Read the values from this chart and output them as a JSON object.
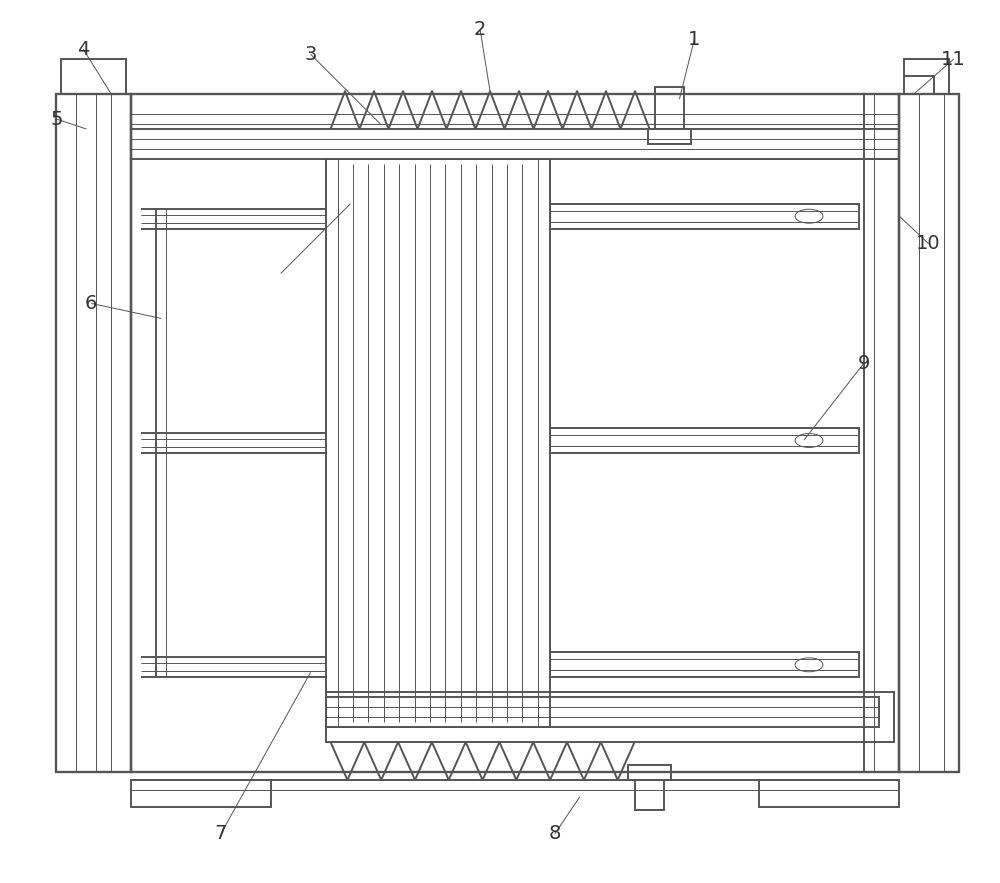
{
  "bg_color": "#ffffff",
  "lc": "#555555",
  "lw": 1.4,
  "tlw": 0.7,
  "figsize": [
    10.0,
    8.83
  ],
  "dpi": 100
}
